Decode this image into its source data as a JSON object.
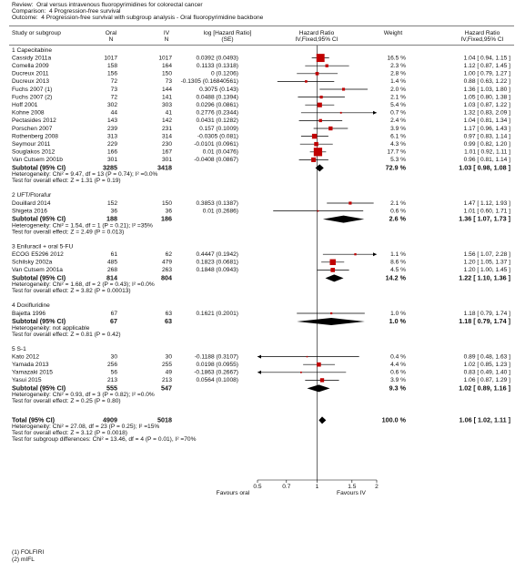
{
  "chart_data": {
    "type": "forest",
    "review": "Review:  Oral versus intravenous fluoropyrimidines for colorectal cancer",
    "comparison": "Comparison:  4 Progression-free survival",
    "outcome": "Outcome:  4 Progression-free survival with subgroup analysis - Oral fluoropyrimidine backbone",
    "columns": {
      "study": "Study or subgroup",
      "oral": [
        "Oral",
        "N"
      ],
      "iv": [
        "IV",
        "N"
      ],
      "log_hr": [
        "log [Hazard Ratio]",
        "(SE)"
      ],
      "hr_plot": [
        "Hazard Ratio",
        "IV,Fixed,95% CI"
      ],
      "weight": "Weight",
      "hr": [
        "Hazard Ratio",
        "IV,Fixed,95% CI"
      ]
    },
    "marker_color": "#c00000",
    "diamond_color": "#000000",
    "log_scale": true,
    "reference_line": 1,
    "xlim": [
      0.5,
      2
    ],
    "xticks": [
      0.5,
      0.7,
      1,
      1.5,
      2
    ],
    "x_labels": [
      "Favours oral",
      "Favours IV"
    ],
    "groups": [
      {
        "name": "1 Capecitabine",
        "studies": [
          {
            "name": "Cassidy 2011a",
            "oral_n": 1017,
            "iv_n": 1017,
            "log_hr_se": "0.0392 (0.0493)",
            "weight": 16.5,
            "weight_label": "16.5 %",
            "hr": 1.04,
            "ci": [
              0.94,
              1.15
            ],
            "hr_label": "1.04 [ 0.94, 1.15 ]"
          },
          {
            "name": "Comella 2009",
            "oral_n": 158,
            "iv_n": 164,
            "log_hr_se": "0.1133 (0.1318)",
            "weight": 2.3,
            "weight_label": "2.3 %",
            "hr": 1.12,
            "ci": [
              0.87,
              1.45
            ],
            "hr_label": "1.12 [ 0.87, 1.45 ]"
          },
          {
            "name": "Ducreux 2011",
            "oral_n": 156,
            "iv_n": 150,
            "log_hr_se": "0 (0.1206)",
            "weight": 2.8,
            "weight_label": "2.8 %",
            "hr": 1.0,
            "ci": [
              0.79,
              1.27
            ],
            "hr_label": "1.00 [ 0.79, 1.27 ]"
          },
          {
            "name": "Ducreux 2013",
            "oral_n": 72,
            "iv_n": 73,
            "log_hr_se": "-0.1305 (0.16840561)",
            "weight": 1.4,
            "weight_label": "1.4 %",
            "hr": 0.88,
            "ci": [
              0.63,
              1.22
            ],
            "hr_label": "0.88 [ 0.63, 1.22 ]"
          },
          {
            "name": "Fuchs 2007 (1)",
            "oral_n": 73,
            "iv_n": 144,
            "log_hr_se": "0.3075 (0.143)",
            "weight": 2.0,
            "weight_label": "2.0 %",
            "hr": 1.36,
            "ci": [
              1.03,
              1.8
            ],
            "hr_label": "1.36 [ 1.03, 1.80 ]"
          },
          {
            "name": "Fuchs 2007 (2)",
            "oral_n": 72,
            "iv_n": 141,
            "log_hr_se": "0.0488 (0.1394)",
            "weight": 2.1,
            "weight_label": "2.1 %",
            "hr": 1.05,
            "ci": [
              0.8,
              1.38
            ],
            "hr_label": "1.05 [ 0.80, 1.38 ]"
          },
          {
            "name": "Hoff 2001",
            "oral_n": 302,
            "iv_n": 303,
            "log_hr_se": "0.0296 (0.0861)",
            "weight": 5.4,
            "weight_label": "5.4 %",
            "hr": 1.03,
            "ci": [
              0.87,
              1.22
            ],
            "hr_label": "1.03 [ 0.87, 1.22 ]"
          },
          {
            "name": "Kohne 2008",
            "oral_n": 44,
            "iv_n": 41,
            "log_hr_se": "0.2776 (0.2344)",
            "weight": 0.7,
            "weight_label": "0.7 %",
            "hr": 1.32,
            "ci": [
              0.83,
              2.09
            ],
            "hr_label": "1.32 [ 0.83, 2.09 ]"
          },
          {
            "name": "Pectasides 2012",
            "oral_n": 143,
            "iv_n": 142,
            "log_hr_se": "0.0431 (0.1282)",
            "weight": 2.4,
            "weight_label": "2.4 %",
            "hr": 1.04,
            "ci": [
              0.81,
              1.34
            ],
            "hr_label": "1.04 [ 0.81, 1.34 ]"
          },
          {
            "name": "Porschen 2007",
            "oral_n": 239,
            "iv_n": 231,
            "log_hr_se": "0.157 (0.1009)",
            "weight": 3.9,
            "weight_label": "3.9 %",
            "hr": 1.17,
            "ci": [
              0.96,
              1.43
            ],
            "hr_label": "1.17 [ 0.96, 1.43 ]"
          },
          {
            "name": "Rothenberg 2008",
            "oral_n": 313,
            "iv_n": 314,
            "log_hr_se": "-0.0305 (0.081)",
            "weight": 6.1,
            "weight_label": "6.1 %",
            "hr": 0.97,
            "ci": [
              0.83,
              1.14
            ],
            "hr_label": "0.97 [ 0.83, 1.14 ]"
          },
          {
            "name": "Seymour 2011",
            "oral_n": 229,
            "iv_n": 230,
            "log_hr_se": "-0.0101 (0.0961)",
            "weight": 4.3,
            "weight_label": "4.3 %",
            "hr": 0.99,
            "ci": [
              0.82,
              1.2
            ],
            "hr_label": "0.99 [ 0.82, 1.20 ]"
          },
          {
            "name": "Souglakos 2012",
            "oral_n": 166,
            "iv_n": 167,
            "log_hr_se": "0.01 (0.0476)",
            "weight": 17.7,
            "weight_label": "17.7 %",
            "hr": 1.01,
            "ci": [
              0.92,
              1.11
            ],
            "hr_label": "1.01 [ 0.92, 1.11 ]"
          },
          {
            "name": "Van Cutsem 2001b",
            "oral_n": 301,
            "iv_n": 301,
            "log_hr_se": "-0.0408 (0.0867)",
            "weight": 5.3,
            "weight_label": "5.3 %",
            "hr": 0.96,
            "ci": [
              0.81,
              1.14
            ],
            "hr_label": "0.96 [ 0.81, 1.14 ]"
          }
        ],
        "subtotal": {
          "name": "Subtotal (95% CI)",
          "oral_n": 3285,
          "iv_n": 3418,
          "weight": 72.9,
          "weight_label": "72.9 %",
          "hr": 1.03,
          "ci": [
            0.98,
            1.08
          ],
          "hr_label": "1.03 [ 0.98, 1.08 ]"
        },
        "heterogeneity": "Heterogeneity: Chi² = 9.47, df = 13 (P = 0.74); I² =0.0%",
        "overall_effect": "Test for overall effect: Z = 1.31 (P = 0.19)"
      },
      {
        "name": "2 UFT/Ftorafur",
        "studies": [
          {
            "name": "Douillard 2014",
            "oral_n": 152,
            "iv_n": 150,
            "log_hr_se": "0.3853 (0.1387)",
            "weight": 2.1,
            "weight_label": "2.1 %",
            "hr": 1.47,
            "ci": [
              1.12,
              1.93
            ],
            "hr_label": "1.47 [ 1.12, 1.93 ]"
          },
          {
            "name": "Shigeta 2016",
            "oral_n": 36,
            "iv_n": 36,
            "log_hr_se": "0.01 (0.2686)",
            "weight": 0.6,
            "weight_label": "0.6 %",
            "hr": 1.01,
            "ci": [
              0.6,
              1.71
            ],
            "hr_label": "1.01 [ 0.60, 1.71 ]"
          }
        ],
        "subtotal": {
          "name": "Subtotal (95% CI)",
          "oral_n": 188,
          "iv_n": 186,
          "weight": 2.6,
          "weight_label": "2.6 %",
          "hr": 1.36,
          "ci": [
            1.07,
            1.73
          ],
          "hr_label": "1.36 [ 1.07, 1.73 ]"
        },
        "heterogeneity": "Heterogeneity: Chi² = 1.54, df = 1 (P = 0.21); I² =35%",
        "overall_effect": "Test for overall effect: Z = 2.49 (P = 0.013)"
      },
      {
        "name": "3 Eniluracil + oral 5-FU",
        "studies": [
          {
            "name": "ECOG E5296 2012",
            "oral_n": 61,
            "iv_n": 62,
            "log_hr_se": "0.4447 (0.1942)",
            "weight": 1.1,
            "weight_label": "1.1 %",
            "hr": 1.56,
            "ci": [
              1.07,
              2.28
            ],
            "hr_label": "1.56 [ 1.07, 2.28 ]"
          },
          {
            "name": "Schilsky 2002a",
            "oral_n": 485,
            "iv_n": 479,
            "log_hr_se": "0.1823 (0.0681)",
            "weight": 8.6,
            "weight_label": "8.6 %",
            "hr": 1.2,
            "ci": [
              1.05,
              1.37
            ],
            "hr_label": "1.20 [ 1.05, 1.37 ]"
          },
          {
            "name": "Van Cutsem 2001a",
            "oral_n": 268,
            "iv_n": 263,
            "log_hr_se": "0.1848 (0.0943)",
            "weight": 4.5,
            "weight_label": "4.5 %",
            "hr": 1.2,
            "ci": [
              1.0,
              1.45
            ],
            "hr_label": "1.20 [ 1.00, 1.45 ]"
          }
        ],
        "subtotal": {
          "name": "Subtotal (95% CI)",
          "oral_n": 814,
          "iv_n": 804,
          "weight": 14.2,
          "weight_label": "14.2 %",
          "hr": 1.22,
          "ci": [
            1.1,
            1.36
          ],
          "hr_label": "1.22 [ 1.10, 1.36 ]"
        },
        "heterogeneity": "Heterogeneity: Chi² = 1.68, df = 2 (P = 0.43); I² =0.0%",
        "overall_effect": "Test for overall effect: Z = 3.82 (P = 0.00013)"
      },
      {
        "name": "4 Doxifluridine",
        "studies": [
          {
            "name": "Bajetta 1996",
            "oral_n": 67,
            "iv_n": 63,
            "log_hr_se": "0.1621 (0.2001)",
            "weight": 1.0,
            "weight_label": "1.0 %",
            "hr": 1.18,
            "ci": [
              0.79,
              1.74
            ],
            "hr_label": "1.18 [ 0.79, 1.74 ]"
          }
        ],
        "subtotal": {
          "name": "Subtotal (95% CI)",
          "oral_n": 67,
          "iv_n": 63,
          "weight": 1.0,
          "weight_label": "1.0 %",
          "hr": 1.18,
          "ci": [
            0.79,
            1.74
          ],
          "hr_label": "1.18 [ 0.79, 1.74 ]"
        },
        "heterogeneity": "Heterogeneity: not applicable",
        "overall_effect": "Test for overall effect: Z = 0.81 (P = 0.42)"
      },
      {
        "name": "5 S-1",
        "studies": [
          {
            "name": "Kato 2012",
            "oral_n": 30,
            "iv_n": 30,
            "log_hr_se": "-0.1188 (0.3107)",
            "weight": 0.4,
            "weight_label": "0.4 %",
            "hr": 0.89,
            "ci": [
              0.48,
              1.63
            ],
            "hr_label": "0.89 [ 0.48, 1.63 ]"
          },
          {
            "name": "Yamada 2013",
            "oral_n": 256,
            "iv_n": 255,
            "log_hr_se": "0.0198 (0.0955)",
            "weight": 4.4,
            "weight_label": "4.4 %",
            "hr": 1.02,
            "ci": [
              0.85,
              1.23
            ],
            "hr_label": "1.02 [ 0.85, 1.23 ]"
          },
          {
            "name": "Yamazaki 2015",
            "oral_n": 56,
            "iv_n": 49,
            "log_hr_se": "-0.1863 (0.2667)",
            "weight": 0.6,
            "weight_label": "0.6 %",
            "hr": 0.83,
            "ci": [
              0.49,
              1.4
            ],
            "hr_label": "0.83 [ 0.49, 1.40 ]"
          },
          {
            "name": "Yasui 2015",
            "oral_n": 213,
            "iv_n": 213,
            "log_hr_se": "0.0564 (0.1008)",
            "weight": 3.9,
            "weight_label": "3.9 %",
            "hr": 1.06,
            "ci": [
              0.87,
              1.29
            ],
            "hr_label": "1.06 [ 0.87, 1.29 ]"
          }
        ],
        "subtotal": {
          "name": "Subtotal (95% CI)",
          "oral_n": 555,
          "iv_n": 547,
          "weight": 9.3,
          "weight_label": "9.3 %",
          "hr": 1.02,
          "ci": [
            0.89,
            1.16
          ],
          "hr_label": "1.02 [ 0.89, 1.16 ]"
        },
        "heterogeneity": "Heterogeneity: Chi² = 0.93, df = 3 (P = 0.82); I² =0.0%",
        "overall_effect": "Test for overall effect: Z = 0.25 (P = 0.80)"
      }
    ],
    "total": {
      "name": "Total (95% CI)",
      "oral_n": 4909,
      "iv_n": 5018,
      "weight": 100.0,
      "weight_label": "100.0 %",
      "hr": 1.06,
      "ci": [
        1.02,
        1.11
      ],
      "hr_label": "1.06 [ 1.02, 1.11 ]",
      "heterogeneity": "Heterogeneity: Chi² = 27.08, df = 23 (P = 0.25); I² =15%",
      "overall_effect": "Test for overall effect: Z = 3.12 (P = 0.0018)",
      "subgroup_differences": "Test for subgroup differences: Chi² = 13.46, df = 4 (P = 0.01), I² =70%"
    },
    "footnotes": [
      "(1) FOLFIRI",
      "(2) mIFL"
    ]
  }
}
